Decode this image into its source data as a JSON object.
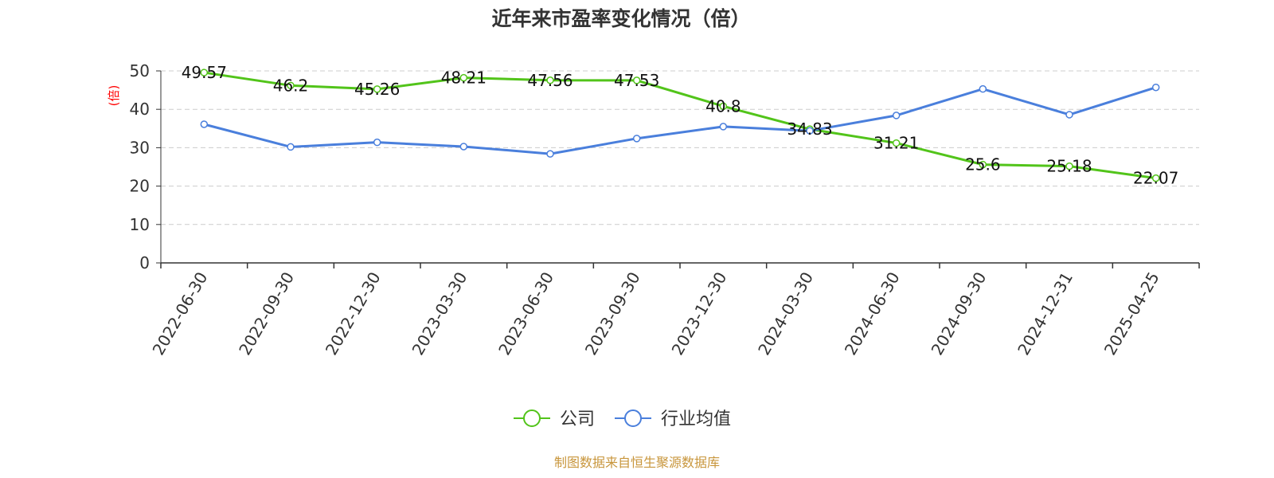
{
  "chart_data": {
    "type": "line",
    "title": "近年来市盈率变化情况（倍）",
    "ylabel": "(倍)",
    "xlabel": "",
    "categories": [
      "2022-06-30",
      "2022-09-30",
      "2022-12-30",
      "2023-03-30",
      "2023-06-30",
      "2023-09-30",
      "2023-12-30",
      "2024-03-30",
      "2024-06-30",
      "2024-09-30",
      "2024-12-31",
      "2025-04-25"
    ],
    "ylim": [
      0,
      50
    ],
    "yticks": [
      0,
      10,
      20,
      30,
      40,
      50
    ],
    "grid": true,
    "legend_position": "bottom-center",
    "series": [
      {
        "name": "公司",
        "color": "#52c41a",
        "values": [
          49.57,
          46.2,
          45.26,
          48.21,
          47.56,
          47.53,
          40.8,
          34.83,
          31.21,
          25.6,
          25.18,
          22.07
        ],
        "labels": [
          "49.57",
          "46.2",
          "45.26",
          "48.21",
          "47.56",
          "47.53",
          "40.8",
          "34.83",
          "31.21",
          "25.6",
          "25.18",
          "22.07"
        ]
      },
      {
        "name": "行业均值",
        "color": "#4a7fdc",
        "values": [
          36.1,
          30.2,
          31.4,
          30.3,
          28.4,
          32.4,
          35.5,
          34.4,
          38.4,
          45.3,
          38.6,
          45.7
        ]
      }
    ]
  },
  "source_text": "制图数据来自恒生聚源数据库",
  "colors": {
    "ylabel": "#ff0000",
    "source": "#c8963c",
    "axis": "#333333",
    "grid": "#cccccc"
  }
}
